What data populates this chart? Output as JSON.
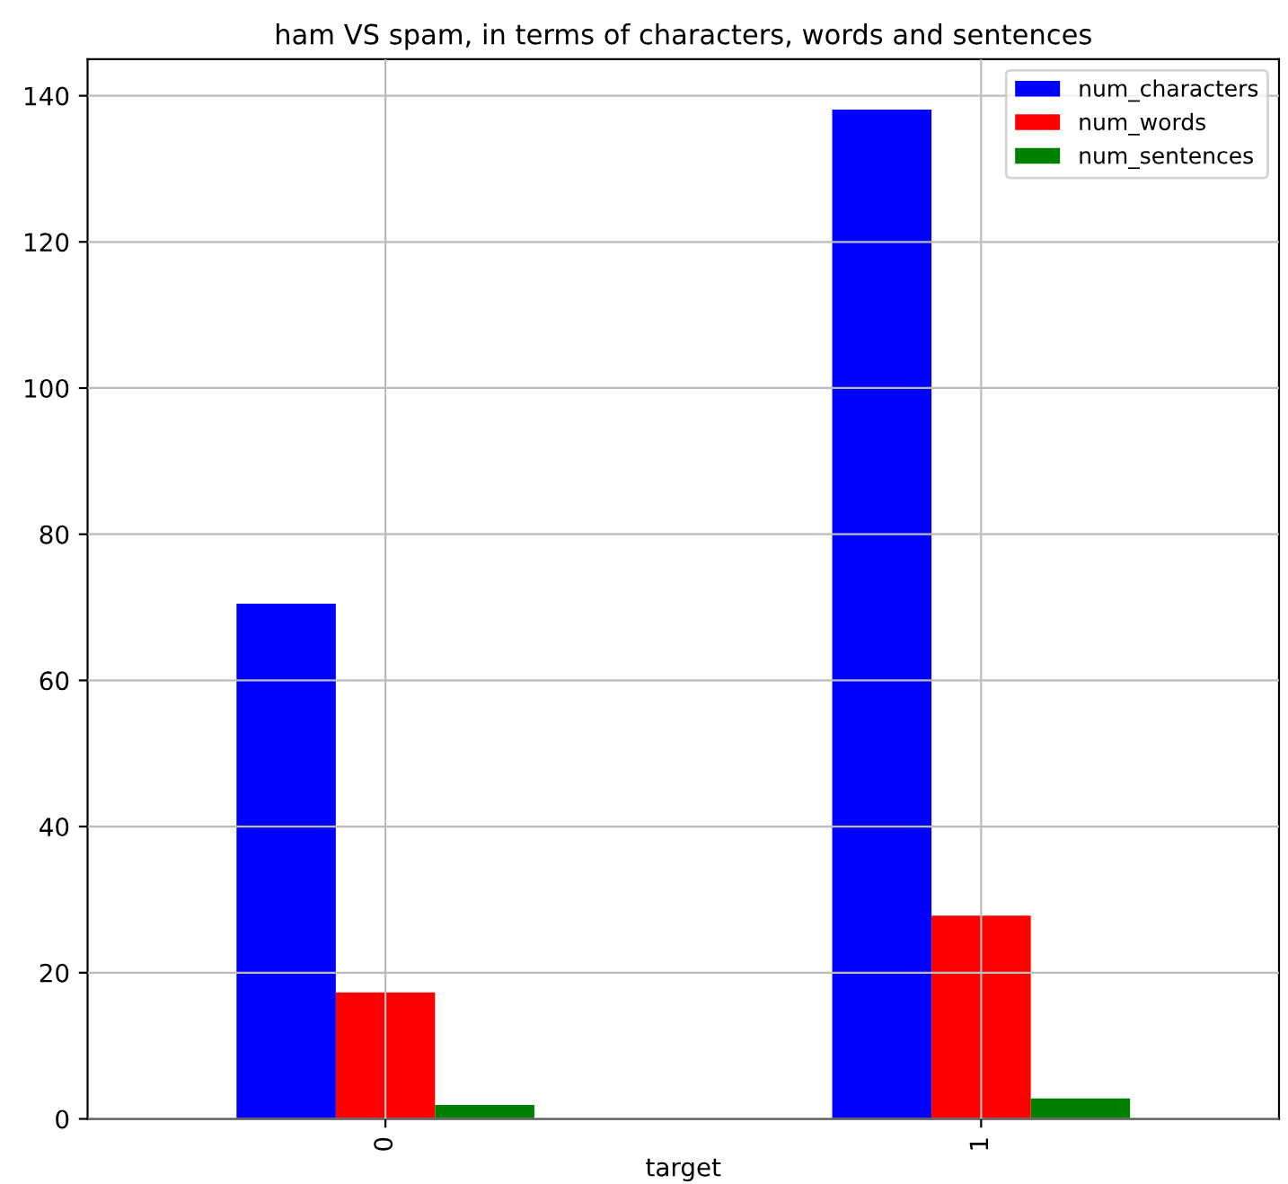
{
  "chart_data": {
    "type": "bar",
    "title": "ham VS spam, in terms of characters, words and sentences",
    "xlabel": "target",
    "categories": [
      "0",
      "1"
    ],
    "series": [
      {
        "name": "num_characters",
        "color": "#0000ff",
        "values": [
          70.5,
          138.1
        ]
      },
      {
        "name": "num_words",
        "color": "#ff0000",
        "values": [
          17.3,
          27.8
        ]
      },
      {
        "name": "num_sentences",
        "color": "#008000",
        "values": [
          1.9,
          2.8
        ]
      }
    ],
    "ylim": [
      0,
      145
    ],
    "yticks": [
      0,
      20,
      40,
      60,
      80,
      100,
      120,
      140
    ],
    "grid": true,
    "legend": "top right"
  }
}
